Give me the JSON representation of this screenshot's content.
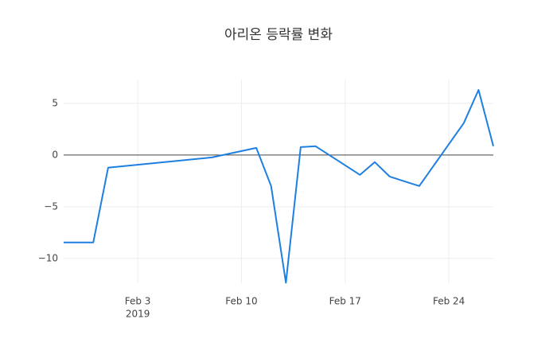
{
  "chart_data": {
    "type": "line",
    "title": "아리온 등락률 변화",
    "x": [
      "2019-01-29",
      "2019-01-31",
      "2019-02-01",
      "2019-02-08",
      "2019-02-11",
      "2019-02-12",
      "2019-02-13",
      "2019-02-14",
      "2019-02-15",
      "2019-02-18",
      "2019-02-19",
      "2019-02-20",
      "2019-02-21",
      "2019-02-22",
      "2019-02-25",
      "2019-02-26",
      "2019-02-27"
    ],
    "series": [
      {
        "color": "#1f7fe0",
        "values": [
          -8.46,
          -8.46,
          -1.23,
          -0.23,
          0.69,
          -3.0,
          -12.35,
          0.77,
          0.85,
          -1.92,
          -0.69,
          -2.08,
          -2.54,
          -3.0,
          3.08,
          6.3,
          0.85
        ]
      }
    ],
    "xlim": [
      "2019-01-29",
      "2019-02-27"
    ],
    "xticks": [
      {
        "value": "2019-02-03",
        "label": "Feb 3"
      },
      {
        "value": "2019-02-10",
        "label": "Feb 10"
      },
      {
        "value": "2019-02-17",
        "label": "Feb 17"
      },
      {
        "value": "2019-02-24",
        "label": "Feb 24"
      }
    ],
    "x_year_label": "2019",
    "ylim": [
      -12.4,
      7.3
    ],
    "yticks": [
      {
        "value": -10,
        "label": "−10"
      },
      {
        "value": -5,
        "label": "−5"
      },
      0,
      5
    ],
    "grid": true,
    "zero_line": true
  }
}
